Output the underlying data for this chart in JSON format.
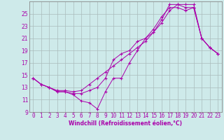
{
  "xlabel": "Windchill (Refroidissement éolien,°C)",
  "bg_color": "#ceeaea",
  "grid_color": "#aabbbb",
  "line_color": "#aa00aa",
  "x_hours": [
    0,
    1,
    2,
    3,
    4,
    5,
    6,
    7,
    8,
    9,
    10,
    11,
    12,
    13,
    14,
    15,
    16,
    17,
    18,
    19,
    20,
    21,
    22,
    23
  ],
  "series1": [
    14.5,
    13.5,
    13.0,
    12.3,
    12.3,
    11.8,
    10.8,
    10.5,
    9.5,
    12.3,
    14.5,
    14.5,
    17.0,
    19.0,
    21.0,
    22.0,
    24.0,
    26.5,
    26.5,
    26.0,
    26.0,
    21.0,
    19.5,
    18.5
  ],
  "series2": [
    14.5,
    13.5,
    13.0,
    12.3,
    12.3,
    12.0,
    12.0,
    12.5,
    13.0,
    14.5,
    17.5,
    18.5,
    19.0,
    20.5,
    21.0,
    22.5,
    24.5,
    26.0,
    26.0,
    25.5,
    26.0,
    21.0,
    19.5,
    18.5
  ],
  "series3": [
    14.5,
    13.5,
    13.0,
    12.5,
    12.5,
    12.3,
    12.5,
    13.5,
    14.5,
    15.5,
    16.5,
    17.5,
    18.5,
    19.5,
    20.5,
    22.0,
    23.5,
    25.5,
    26.5,
    26.5,
    26.5,
    21.0,
    19.5,
    18.5
  ],
  "ylim": [
    9,
    27
  ],
  "xlim": [
    -0.5,
    23.5
  ],
  "yticks": [
    9,
    11,
    13,
    15,
    17,
    19,
    21,
    23,
    25
  ],
  "xticks": [
    0,
    1,
    2,
    3,
    4,
    5,
    6,
    7,
    8,
    9,
    10,
    11,
    12,
    13,
    14,
    15,
    16,
    17,
    18,
    19,
    20,
    21,
    22,
    23
  ],
  "xlabel_fontsize": 5.5,
  "tick_fontsize": 5.5
}
